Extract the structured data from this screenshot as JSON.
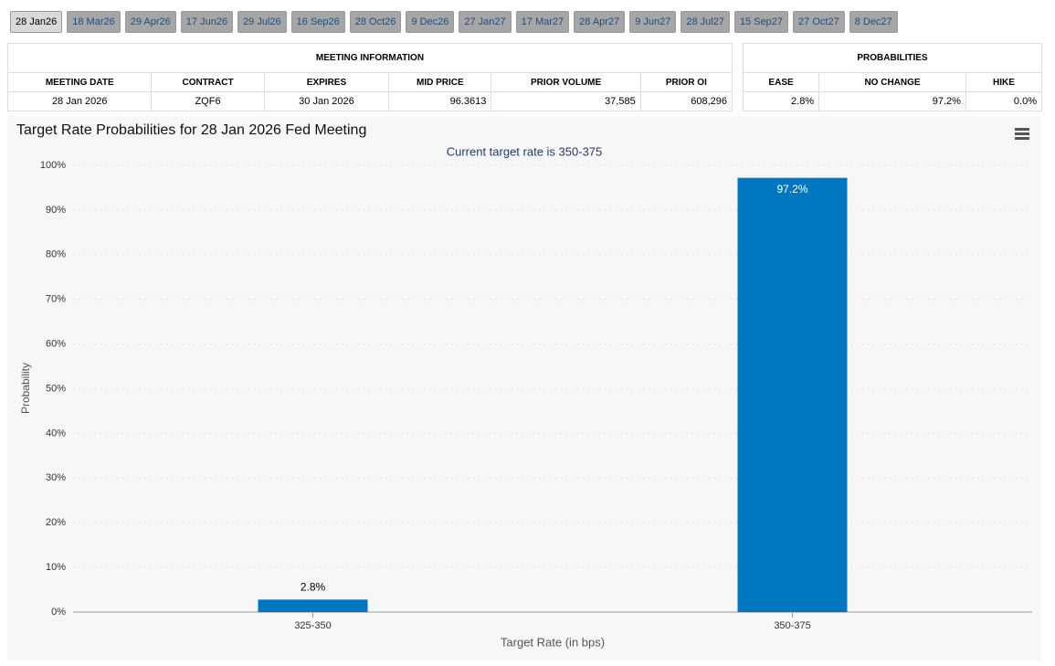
{
  "tabs": [
    "28 Jan26",
    "18 Mar26",
    "29 Apr26",
    "17 Jun26",
    "29 Jul26",
    "16 Sep26",
    "28 Oct26",
    "9 Dec26",
    "27 Jan27",
    "17 Mar27",
    "28 Apr27",
    "9 Jun27",
    "28 Jul27",
    "15 Sep27",
    "27 Oct27",
    "8 Dec27"
  ],
  "meeting_information": {
    "title": "MEETING INFORMATION",
    "headers": [
      "MEETING DATE",
      "CONTRACT",
      "EXPIRES",
      "MID PRICE",
      "PRIOR VOLUME",
      "PRIOR OI"
    ],
    "row": [
      "28 Jan 2026",
      "ZQF6",
      "30 Jan 2026",
      "96.3613",
      "37,585",
      "608,296"
    ]
  },
  "probabilities": {
    "title": "PROBABILITIES",
    "headers": [
      "EASE",
      "NO CHANGE",
      "HIKE"
    ],
    "row": [
      "2.8%",
      "97.2%",
      "0.0%"
    ]
  },
  "chart_data": {
    "type": "bar",
    "title": "Target Rate Probabilities for 28 Jan 2026 Fed Meeting",
    "subtitle": "Current target rate is 350-375",
    "x_label": "Target Rate (in bps)",
    "y_label": "Probability",
    "categories": [
      "325-350",
      "350-375"
    ],
    "values": [
      2.8,
      97.2
    ],
    "value_labels": [
      "2.8%",
      "97.2%"
    ],
    "color": "#0077c0",
    "ylim": [
      0,
      100
    ],
    "yticks": [
      {
        "value": 0,
        "label": "0%"
      },
      {
        "value": 10,
        "label": "10%"
      },
      {
        "value": 20,
        "label": "20%"
      },
      {
        "value": 30,
        "label": "30%"
      },
      {
        "value": 40,
        "label": "40%"
      },
      {
        "value": 50,
        "label": "50%"
      },
      {
        "value": 60,
        "label": "60%"
      },
      {
        "value": 70,
        "label": "70%"
      },
      {
        "value": 80,
        "label": "80%"
      },
      {
        "value": 90,
        "label": "90%"
      },
      {
        "value": 100,
        "label": "100%"
      }
    ],
    "grid": true
  }
}
